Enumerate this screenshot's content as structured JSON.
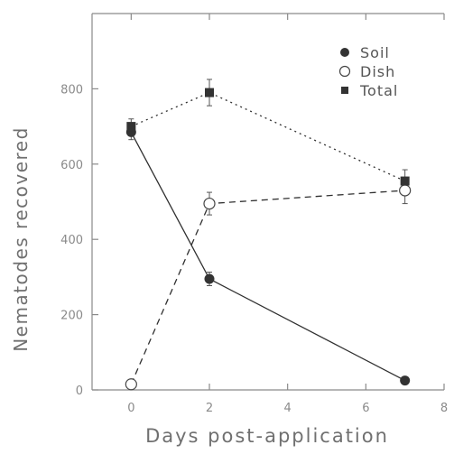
{
  "chart_data": {
    "type": "scatter",
    "title": "",
    "xlabel": "Days post-application",
    "ylabel": "Nematodes recovered",
    "xlim": [
      -1,
      8
    ],
    "ylim": [
      0,
      1000
    ],
    "xticks": [
      0,
      2,
      4,
      6,
      8
    ],
    "yticks": [
      0,
      200,
      400,
      600,
      800
    ],
    "legend_position": "top-right",
    "grid": false,
    "series": [
      {
        "name": "Soil",
        "marker": "filled-circle",
        "line": "solid",
        "color": "#303030",
        "x": [
          0,
          2,
          7
        ],
        "y": [
          685,
          295,
          25
        ],
        "err": [
          20,
          18,
          8
        ]
      },
      {
        "name": "Dish",
        "marker": "open-circle",
        "line": "dashed",
        "color": "#303030",
        "x": [
          0,
          2,
          7
        ],
        "y": [
          15,
          495,
          530
        ],
        "err": [
          5,
          30,
          35
        ]
      },
      {
        "name": "Total",
        "marker": "filled-square",
        "line": "dotted",
        "color": "#303030",
        "x": [
          0,
          2,
          7
        ],
        "y": [
          700,
          790,
          555
        ],
        "err": [
          20,
          35,
          30
        ]
      }
    ]
  }
}
